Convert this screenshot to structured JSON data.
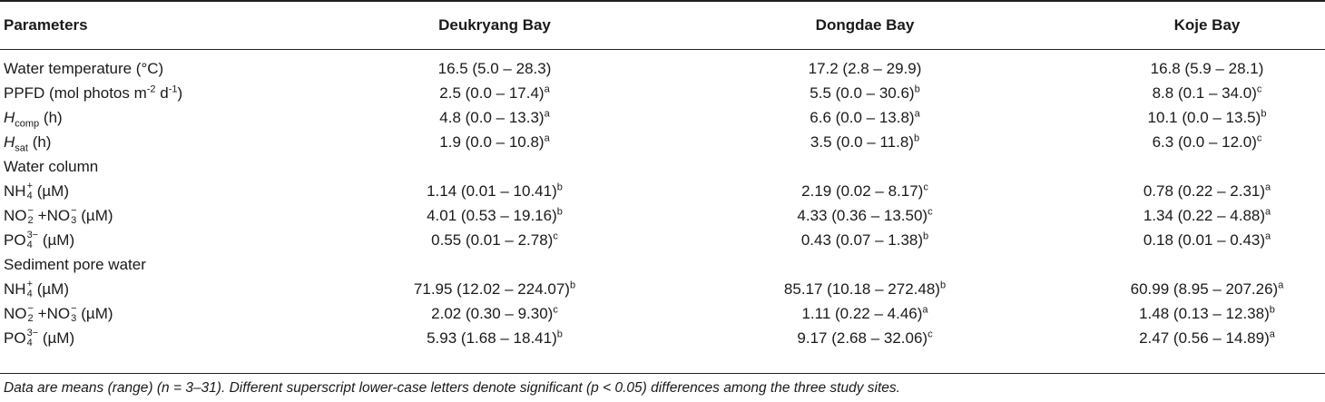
{
  "header": {
    "col0": "Parameters",
    "col1": "Deukryang Bay",
    "col2": "Dongdae Bay",
    "col3": "Koje Bay"
  },
  "rows": [
    {
      "p": "Water temperature (°C)",
      "v1": "16.5 (5.0 – 28.3)",
      "v2": "17.2 (2.8 – 29.9)",
      "v3": "16.8 (5.9 – 28.1)"
    },
    {
      "p_pre": "PPFD (mol photos m",
      "p_sup1": "-2",
      "p_mid": " d",
      "p_sup2": "-1",
      "p_post": ")",
      "v1": "2.5 (0.0 – 17.4)",
      "s1": "a",
      "v2": "5.5 (0.0 – 30.6)",
      "s2": "b",
      "v3": "8.8 (0.1 – 34.0)",
      "s3": "c"
    },
    {
      "p_main": "H",
      "p_sub": "comp",
      "p_post": " (h)",
      "v1": "4.8 (0.0 – 13.3)",
      "s1": "a",
      "v2": "6.6 (0.0 – 13.8)",
      "s2": "a",
      "v3": "10.1 (0.0 – 13.5)",
      "s3": "b"
    },
    {
      "p_main": "H",
      "p_sub": "sat",
      "p_post": " (h)",
      "v1": "1.9 (0.0 – 10.8)",
      "s1": "a",
      "v2": "3.5 (0.0 – 11.8)",
      "s2": "b",
      "v3": "6.3 (0.0 – 12.0)",
      "s3": "c"
    },
    {
      "section": "Water column"
    },
    {
      "ion": "NH",
      "ion_sup": "+",
      "ion_sub": "4",
      "unit": " (µM)",
      "v1": "1.14 (0.01 – 10.41)",
      "s1": "b",
      "v2": "2.19 (0.02 – 8.17)",
      "s2": "c",
      "v3": "0.78 (0.22 – 2.31)",
      "s3": "a"
    },
    {
      "ion": "NO",
      "ion_sup": "−",
      "ion_sub": "2",
      "ion2": " +NO",
      "ion2_sup": "−",
      "ion2_sub": "3",
      "unit": " (µM)",
      "v1": "4.01 (0.53 – 19.16)",
      "s1": "b",
      "v2": "4.33 (0.36 – 13.50)",
      "s2": "c",
      "v3": "1.34 (0.22 – 4.88)",
      "s3": "a"
    },
    {
      "ion": "PO",
      "ion_sup": "3−",
      "ion_sub": "4",
      "unit": " (µM)",
      "v1": "0.55 (0.01 – 2.78)",
      "s1": "c",
      "v2": "0.43 (0.07 – 1.38)",
      "s2": "b",
      "v3": "0.18 (0.01 – 0.43)",
      "s3": "a"
    },
    {
      "section": "Sediment pore water"
    },
    {
      "ion": "NH",
      "ion_sup": "+",
      "ion_sub": "4",
      "unit": " (µM)",
      "v1": "71.95 (12.02 – 224.07)",
      "s1": "b",
      "v2": "85.17 (10.18 – 272.48)",
      "s2": "b",
      "v3": "60.99 (8.95 – 207.26)",
      "s3": "a"
    },
    {
      "ion": "NO",
      "ion_sup": "−",
      "ion_sub": "2",
      "ion2": " +NO",
      "ion2_sup": "−",
      "ion2_sub": "3",
      "unit": " (µM)",
      "v1": "2.02 (0.30 – 9.30)",
      "s1": "c",
      "v2": "1.11 (0.22 – 4.46)",
      "s2": "a",
      "v3": "1.48 (0.13 – 12.38)",
      "s3": "b"
    },
    {
      "ion": "PO",
      "ion_sup": "3−",
      "ion_sub": "4",
      "unit": " (µM)",
      "v1": "5.93 (1.68 – 18.41)",
      "s1": "b",
      "v2": "9.17 (2.68 – 32.06)",
      "s2": "c",
      "v3": "2.47 (0.56 – 14.89)",
      "s3": "a"
    }
  ],
  "footnote": {
    "pre": "Data are means (range) (",
    "n": "n",
    "mid": " = 3–31). Different superscript lower-case letters denote significant (",
    "p": "p",
    "post": " < 0.05) differences among the three study sites."
  }
}
